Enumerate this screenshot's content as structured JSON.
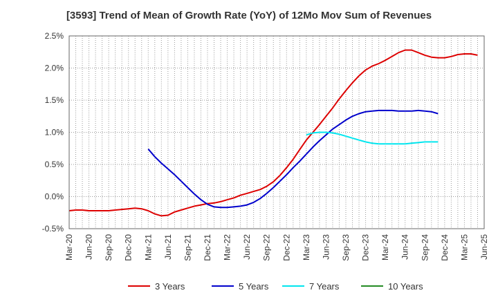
{
  "chart_data": {
    "type": "line",
    "title": "[3593]  Trend of Mean of Growth Rate (YoY) of 12Mo Mov Sum of Revenues",
    "xlabel": "",
    "ylabel": "",
    "ylim": [
      -0.5,
      2.5
    ],
    "y_ticks": [
      "2.5%",
      "2.0%",
      "1.5%",
      "1.0%",
      "0.5%",
      "0.0%",
      "-0.5%"
    ],
    "y_tick_values": [
      2.5,
      2.0,
      1.5,
      1.0,
      0.5,
      0.0,
      -0.5
    ],
    "x_ticks": [
      "Mar-20",
      "Jun-20",
      "Sep-20",
      "Dec-20",
      "Mar-21",
      "Jun-21",
      "Sep-21",
      "Dec-21",
      "Mar-22",
      "Jun-22",
      "Sep-22",
      "Dec-22",
      "Mar-23",
      "Jun-23",
      "Sep-23",
      "Dec-23",
      "Mar-24",
      "Jun-24",
      "Sep-24",
      "Dec-24",
      "Mar-25",
      "Jun-25"
    ],
    "x_start": "Mar-20",
    "x_months": 63,
    "legend": [
      "3 Years",
      "5 Years",
      "7 Years",
      "10 Years"
    ],
    "series": [
      {
        "name": "3 Years",
        "color": "#dd0000",
        "start_month": 0,
        "values": [
          -0.22,
          -0.21,
          -0.21,
          -0.22,
          -0.22,
          -0.22,
          -0.22,
          -0.21,
          -0.2,
          -0.19,
          -0.18,
          -0.19,
          -0.22,
          -0.27,
          -0.3,
          -0.29,
          -0.24,
          -0.21,
          -0.18,
          -0.15,
          -0.13,
          -0.11,
          -0.1,
          -0.08,
          -0.05,
          -0.02,
          0.02,
          0.05,
          0.08,
          0.11,
          0.16,
          0.23,
          0.33,
          0.45,
          0.58,
          0.73,
          0.88,
          1.0,
          1.12,
          1.25,
          1.38,
          1.52,
          1.65,
          1.77,
          1.88,
          1.97,
          2.03,
          2.07,
          2.12,
          2.18,
          2.24,
          2.28,
          2.28,
          2.24,
          2.2,
          2.17,
          2.16,
          2.16,
          2.18,
          2.21,
          2.22,
          2.22,
          2.2
        ]
      },
      {
        "name": "5 Years",
        "color": "#0000cc",
        "start_month": 12,
        "values": [
          0.74,
          0.62,
          0.52,
          0.43,
          0.34,
          0.24,
          0.14,
          0.04,
          -0.05,
          -0.12,
          -0.16,
          -0.17,
          -0.17,
          -0.16,
          -0.15,
          -0.13,
          -0.09,
          -0.03,
          0.05,
          0.14,
          0.24,
          0.34,
          0.45,
          0.55,
          0.66,
          0.77,
          0.87,
          0.96,
          1.05,
          1.12,
          1.19,
          1.25,
          1.29,
          1.32,
          1.33,
          1.34,
          1.34,
          1.34,
          1.33,
          1.33,
          1.33,
          1.34,
          1.33,
          1.32,
          1.29
        ]
      },
      {
        "name": "7 Years",
        "color": "#00e5ee",
        "start_month": 36,
        "values": [
          0.96,
          0.99,
          1.0,
          1.0,
          0.99,
          0.97,
          0.94,
          0.91,
          0.88,
          0.85,
          0.83,
          0.82,
          0.82,
          0.82,
          0.82,
          0.82,
          0.83,
          0.84,
          0.85,
          0.85,
          0.85
        ]
      },
      {
        "name": "10 Years",
        "color": "#228b22",
        "start_month": 0,
        "values": []
      }
    ]
  }
}
